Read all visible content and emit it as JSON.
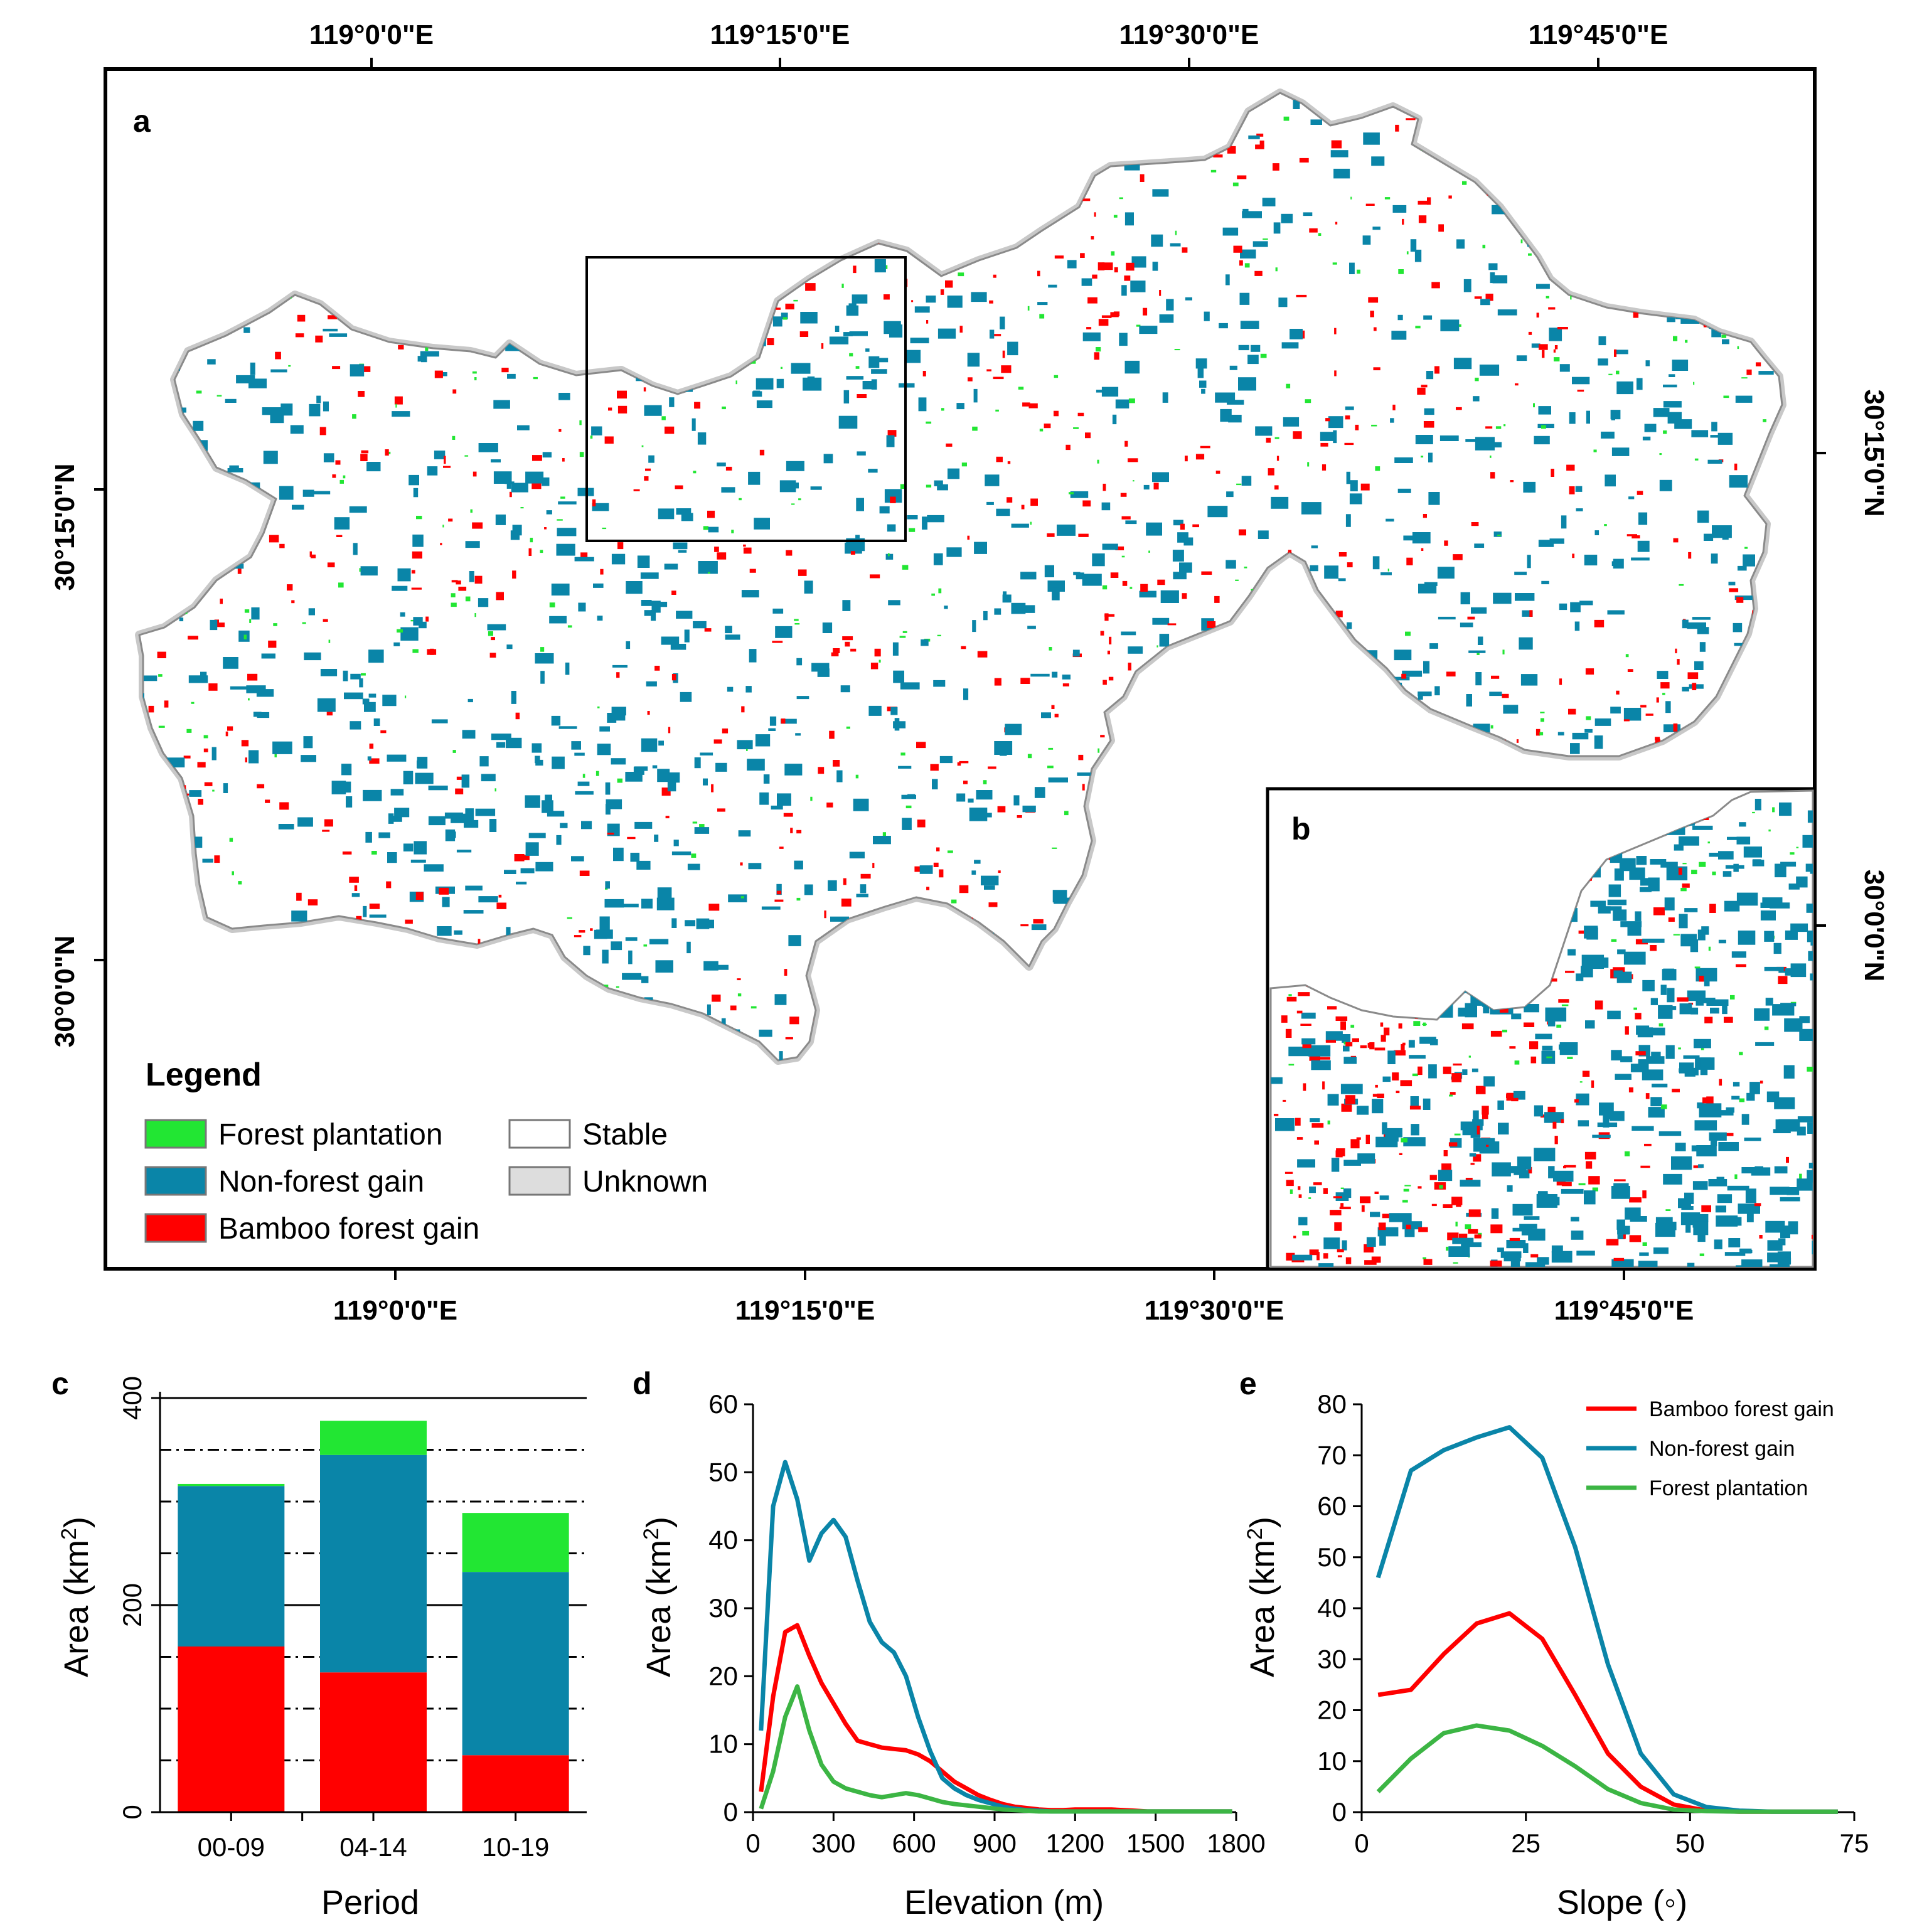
{
  "colors": {
    "forest_plantation": "#22e633",
    "non_forest_gain": "#0a85a8",
    "bamboo_forest_gain": "#ff0000",
    "stable": "#ffffff",
    "unknown": "#dddddd",
    "line_forest_plantation": "#3cb544"
  },
  "map": {
    "panel_a": "a",
    "panel_b": "b",
    "lon_labels_top": [
      "119°0'0\"E",
      "119°15'0\"E",
      "119°30'0\"E",
      "119°45'0\"E"
    ],
    "lon_labels_bottom": [
      "119°0'0\"E",
      "119°15'0\"E",
      "119°30'0\"E",
      "119°45'0\"E"
    ],
    "lat_labels_left": [
      "30°15'0\"N",
      "30°0'0\"N"
    ],
    "lat_labels_right": [
      "30°15'0\"N",
      "30°0'0\"N"
    ],
    "legend": {
      "title": "Legend",
      "items": [
        {
          "label": "Forest plantation",
          "color": "#22e633"
        },
        {
          "label": "Non-forest gain",
          "color": "#0a85a8"
        },
        {
          "label": "Bamboo forest gain",
          "color": "#ff0000"
        },
        {
          "label": "Stable",
          "color": "#ffffff"
        },
        {
          "label": "Unknown",
          "color": "#dddddd"
        }
      ]
    }
  },
  "chart_data": [
    {
      "panel": "c",
      "type": "bar",
      "stacked": true,
      "categories": [
        "00-09",
        "04-14",
        "10-19"
      ],
      "series": [
        {
          "name": "Bamboo forest gain",
          "values": [
            160,
            135,
            55
          ]
        },
        {
          "name": "Non-forest gain",
          "values": [
            155,
            210,
            177
          ]
        },
        {
          "name": "Forest plantation",
          "values": [
            2,
            33,
            57
          ]
        }
      ],
      "xlabel": "Period",
      "ylabel": "Area (km",
      "ylabel_sup": "2",
      "ylabel_close": ")",
      "ylim": [
        0,
        400
      ],
      "yticks": [
        0,
        200,
        400
      ],
      "grid": "solid at 200 and 400, dash-dot at 50, 100, 150, 250, 300, 350"
    },
    {
      "panel": "d",
      "type": "line",
      "x": [
        30,
        75,
        120,
        165,
        210,
        255,
        300,
        345,
        390,
        435,
        480,
        525,
        570,
        615,
        660,
        705,
        750,
        795,
        840,
        885,
        930,
        975,
        1020,
        1065,
        1110,
        1155,
        1200,
        1245,
        1290,
        1335,
        1380,
        1425,
        1470,
        1515,
        1560,
        1605,
        1650,
        1695,
        1740,
        1785
      ],
      "series": [
        {
          "name": "Bamboo forest gain",
          "values": [
            3,
            17,
            26.5,
            27.5,
            23,
            19,
            16,
            13,
            10.5,
            10,
            9.5,
            9.3,
            9.1,
            8.5,
            7.5,
            6,
            4.5,
            3.5,
            2.5,
            1.8,
            1.2,
            0.8,
            0.6,
            0.4,
            0.3,
            0.3,
            0.4,
            0.4,
            0.4,
            0.4,
            0.3,
            0.2,
            0.1,
            0.1,
            0.1,
            0.1,
            0.1,
            0.1,
            0.1,
            0.1
          ]
        },
        {
          "name": "Non-forest gain",
          "values": [
            12,
            45,
            51.5,
            46,
            37,
            41,
            43,
            40.5,
            34,
            28,
            25,
            23.5,
            20,
            14,
            9,
            5,
            3.5,
            2.5,
            1.8,
            1.3,
            0.8,
            0.5,
            0.3,
            0.2,
            0.1,
            0.1,
            0.1,
            0.1,
            0.1,
            0.1,
            0.1,
            0.1,
            0.1,
            0.1,
            0.1,
            0.1,
            0.1,
            0.1,
            0.1,
            0.1
          ]
        },
        {
          "name": "Forest plantation",
          "values": [
            0.5,
            6,
            14,
            18.5,
            12,
            7,
            4.5,
            3.5,
            3,
            2.5,
            2.2,
            2.5,
            2.8,
            2.5,
            2,
            1.5,
            1.2,
            1,
            0.8,
            0.6,
            0.4,
            0.3,
            0.2,
            0.1,
            0.1,
            0.1,
            0.1,
            0.1,
            0.1,
            0.1,
            0.1,
            0.1,
            0.1,
            0.1,
            0.1,
            0.1,
            0.1,
            0.1,
            0.1,
            0.1
          ]
        }
      ],
      "xlabel": "Elevation (m)",
      "ylabel": "Area (km",
      "ylabel_sup": "2",
      "ylabel_close": ")",
      "xlim": [
        0,
        1800
      ],
      "ylim": [
        0,
        60
      ],
      "xticks": [
        0,
        300,
        600,
        900,
        1200,
        1500,
        1800
      ],
      "yticks": [
        0,
        10,
        20,
        30,
        40,
        50,
        60
      ]
    },
    {
      "panel": "e",
      "type": "line",
      "x": [
        2.5,
        7.5,
        12.5,
        17.5,
        22.5,
        27.5,
        32.5,
        37.5,
        42.5,
        47.5,
        52.5,
        57.5,
        62.5,
        67.5,
        72.5
      ],
      "series": [
        {
          "name": "Bamboo forest gain",
          "values": [
            23,
            24,
            31,
            37,
            39,
            34,
            23,
            11.5,
            5,
            1.5,
            0.3,
            0.1,
            0.1,
            0.1,
            0.1
          ]
        },
        {
          "name": "Non-forest gain",
          "values": [
            46,
            67,
            71,
            73.5,
            75.5,
            69.5,
            52,
            29,
            11.5,
            3.5,
            1,
            0.3,
            0.1,
            0.1,
            0.1
          ]
        },
        {
          "name": "Forest plantation",
          "values": [
            4,
            10.5,
            15.5,
            17,
            16,
            13,
            9,
            4.5,
            1.8,
            0.5,
            0.2,
            0.1,
            0.1,
            0.1,
            0.1
          ]
        }
      ],
      "legend": [
        "Bamboo forest gain",
        "Non-forest gain",
        "Forest plantation"
      ],
      "xlabel": "Slope (",
      "xlabel_degree": "◦",
      "xlabel_close": ")",
      "ylabel": "Area (km",
      "ylabel_sup": "2",
      "ylabel_close": ")",
      "xlim": [
        0,
        75
      ],
      "ylim": [
        0,
        80
      ],
      "xticks": [
        0,
        25,
        50,
        75
      ],
      "yticks": [
        0,
        10,
        20,
        30,
        40,
        50,
        60,
        70,
        80
      ]
    }
  ]
}
